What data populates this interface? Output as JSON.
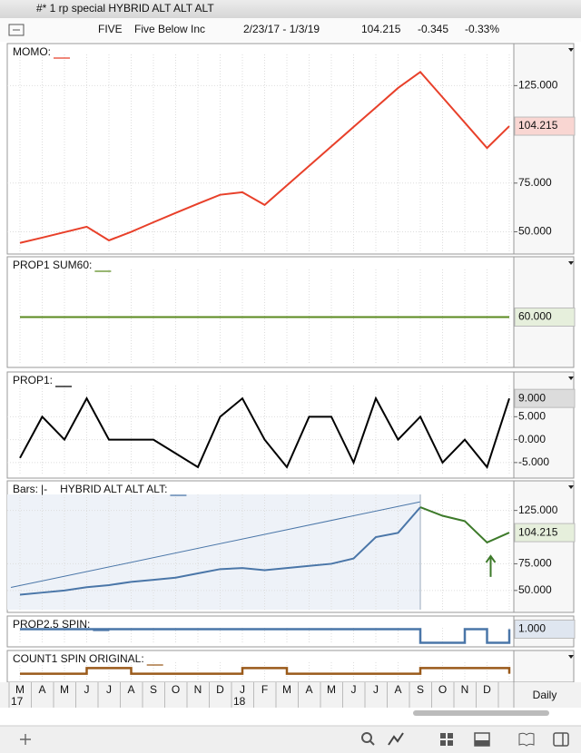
{
  "window": {
    "title": "#* 1 rp special HYBRID ALT ALT ALT"
  },
  "header": {
    "symbol": "FIVE",
    "name": "Five Below Inc",
    "range": "2/23/17 - 1/3/19",
    "last": "104.215",
    "change": "-0.345",
    "change_pct": "-0.33%"
  },
  "x_axis": {
    "categories": [
      "M",
      "A",
      "M",
      "J",
      "J",
      "A",
      "S",
      "O",
      "N",
      "D",
      "J",
      "F",
      "M",
      "A",
      "M",
      "J",
      "J",
      "A",
      "S",
      "O",
      "N",
      "D",
      null
    ],
    "year_labels": [
      "17",
      "18"
    ]
  },
  "chart_data": [
    {
      "type": "line",
      "title": "MOMO:",
      "color": "#e8402a",
      "ylim": [
        40,
        141
      ],
      "yticks": [
        {
          "value": 125,
          "label": "125.000"
        },
        {
          "value": 75,
          "label": "75.000"
        },
        {
          "value": 50,
          "label": "50.000"
        }
      ],
      "current": {
        "value": 104.215,
        "label": "104.215"
      },
      "current_color": "#f9d6d2",
      "values": [
        44.3,
        47,
        49.8,
        52.6,
        45.6,
        50,
        54.9,
        59.7,
        64.4,
        69,
        70.3,
        63.8,
        73.8,
        83.8,
        93.8,
        103.8,
        113.8,
        123.8,
        132,
        119,
        106,
        93,
        104.215
      ]
    },
    {
      "type": "line",
      "title": "PROP1 SUM60:",
      "color": "#5a8a1e",
      "ylim": [
        45,
        75
      ],
      "yticks": [],
      "current": {
        "value": 60,
        "label": "60.000"
      },
      "current_color": "#e6efdc",
      "values": [
        60,
        60,
        60,
        60,
        60,
        60,
        60,
        60,
        60,
        60,
        60,
        60,
        60,
        60,
        60,
        60,
        60,
        60,
        60,
        60,
        60,
        60,
        60
      ]
    },
    {
      "type": "line",
      "title": "PROP1:",
      "color": "#000000",
      "ylim": [
        -7.8,
        11.8
      ],
      "yticks": [
        {
          "value": 5,
          "label": "5.000"
        },
        {
          "value": 0,
          "label": "0.000"
        },
        {
          "value": -5,
          "label": "-5.000"
        }
      ],
      "current": {
        "value": 9,
        "label": "9.000"
      },
      "current_color": "#dcdcdc",
      "values": [
        -4,
        5,
        0,
        9,
        0,
        0,
        0,
        -3,
        -6,
        5,
        9,
        0,
        -6,
        5,
        5,
        -5,
        9,
        0,
        5,
        -5,
        0,
        -6,
        9
      ]
    },
    {
      "type": "line",
      "title": "Bars:",
      "marker": "|-",
      "subtitle": "HYBRID ALT ALT ALT:",
      "ylim": [
        32,
        140
      ],
      "yticks": [
        {
          "value": 125,
          "label": "125.000"
        },
        {
          "value": 75,
          "label": "75.000"
        },
        {
          "value": 50,
          "label": "50.000"
        }
      ],
      "current": {
        "value": 104.215,
        "label": "104.215"
      },
      "current_color": "#e6efdc",
      "series": [
        {
          "color": "#4a76a8",
          "values": [
            46,
            48,
            50,
            53,
            55,
            58,
            60,
            62,
            66,
            70,
            71,
            69,
            71,
            73,
            75,
            80,
            100,
            104,
            128,
            null,
            null,
            null,
            null
          ]
        },
        {
          "color": "#3d7a2a",
          "values": [
            null,
            null,
            null,
            null,
            null,
            null,
            null,
            null,
            null,
            null,
            null,
            null,
            null,
            null,
            null,
            null,
            null,
            null,
            128,
            120,
            115,
            95,
            104.215
          ]
        }
      ]
    },
    {
      "type": "step",
      "title": "PROP2.5 SPIN:",
      "color": "#4a76a8",
      "ylim": [
        -0.1,
        1.1
      ],
      "yticks": [],
      "current": {
        "value": 1,
        "label": "1.000"
      },
      "current_color": "#dfe6f0",
      "values": [
        1,
        1,
        1,
        1,
        1,
        1,
        1,
        1,
        1,
        1,
        1,
        1,
        1,
        1,
        1,
        1,
        1,
        1,
        0,
        0,
        1,
        0,
        1
      ]
    },
    {
      "type": "step",
      "title": "COUNT1 SPIN ORIGINAL:",
      "color": "#9a5a1a",
      "ylim": [
        -1,
        2
      ],
      "yticks": [],
      "values": [
        0,
        0,
        0,
        1,
        1,
        0,
        0,
        0,
        0,
        0,
        1,
        1,
        0,
        0,
        0,
        0,
        0,
        0,
        1,
        1,
        1,
        1,
        0
      ]
    }
  ],
  "footer": {
    "interval": "Daily"
  }
}
